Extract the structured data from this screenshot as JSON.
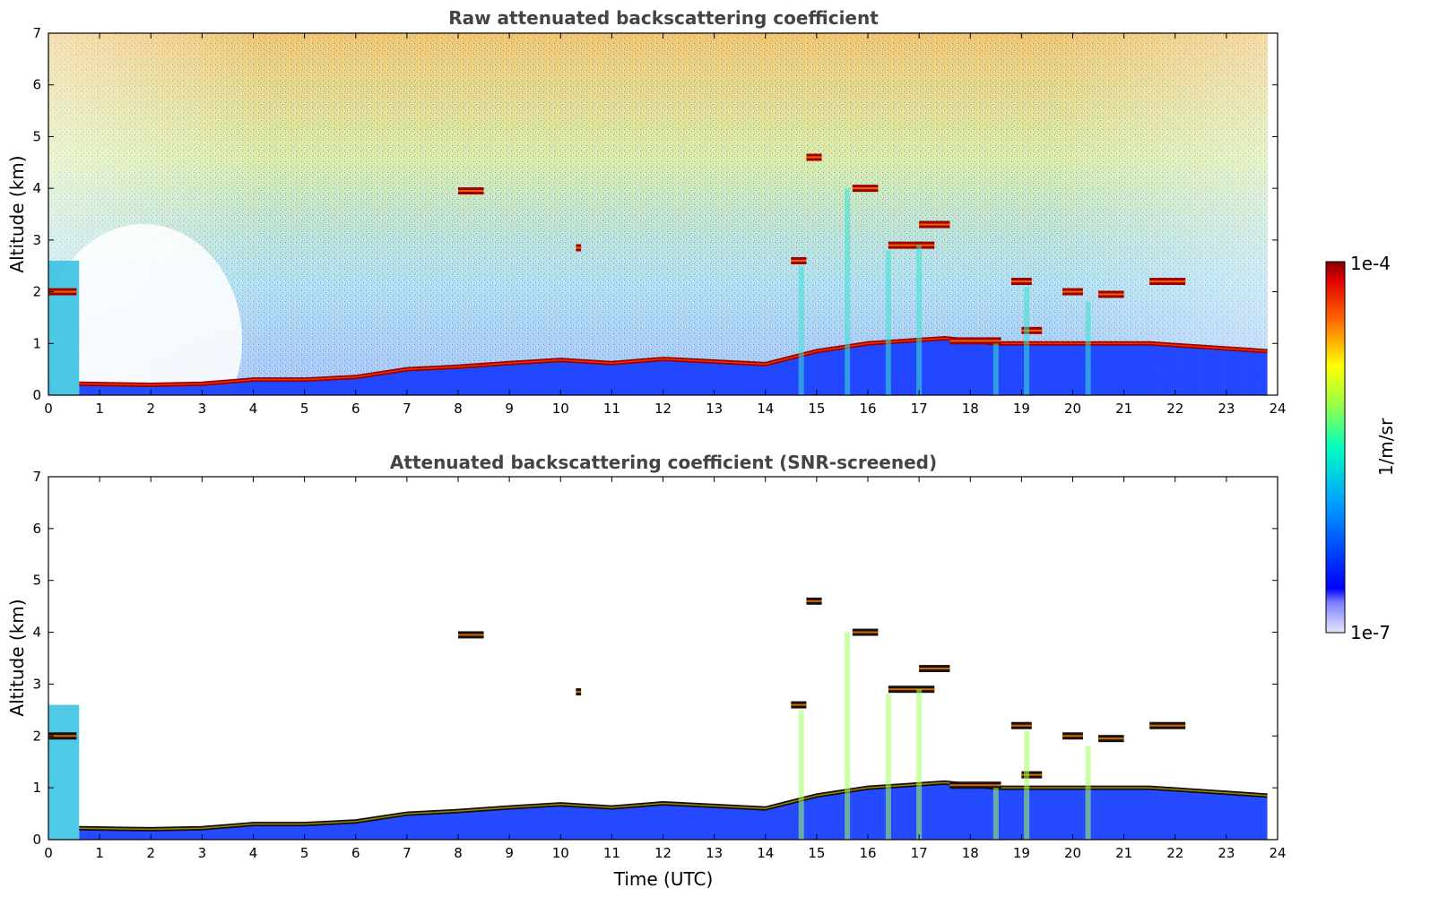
{
  "chart_data": [
    {
      "type": "heatmap",
      "title": "Raw attenuated backscattering coefficient",
      "xlabel": "",
      "ylabel": "Altitude (km)",
      "xlim": [
        0,
        24
      ],
      "ylim": [
        0,
        7
      ],
      "xticks": [
        "0",
        "1",
        "2",
        "3",
        "4",
        "5",
        "6",
        "7",
        "8",
        "9",
        "10",
        "11",
        "12",
        "13",
        "14",
        "15",
        "16",
        "17",
        "18",
        "19",
        "20",
        "21",
        "22",
        "23",
        "24"
      ],
      "yticks": [
        "0",
        "1",
        "2",
        "3",
        "4",
        "5",
        "6",
        "7"
      ],
      "boundary_layer_top_km": [
        [
          0.6,
          0.22
        ],
        [
          2.0,
          0.2
        ],
        [
          3.0,
          0.22
        ],
        [
          4.0,
          0.3
        ],
        [
          5.0,
          0.3
        ],
        [
          6.0,
          0.35
        ],
        [
          7.0,
          0.5
        ],
        [
          8.0,
          0.55
        ],
        [
          9.0,
          0.62
        ],
        [
          10.0,
          0.68
        ],
        [
          11.0,
          0.62
        ],
        [
          12.0,
          0.7
        ],
        [
          13.0,
          0.65
        ],
        [
          14.0,
          0.6
        ],
        [
          15.0,
          0.85
        ],
        [
          16.0,
          1.0
        ],
        [
          17.5,
          1.1
        ],
        [
          18.5,
          1.0
        ],
        [
          21.5,
          1.0
        ],
        [
          23.8,
          0.85
        ]
      ],
      "cloud_layers": [
        {
          "t0": 8.0,
          "t1": 8.5,
          "z": 3.95
        },
        {
          "t0": 10.3,
          "t1": 10.4,
          "z": 2.85
        },
        {
          "t0": 14.5,
          "t1": 14.8,
          "z": 2.6
        },
        {
          "t0": 14.8,
          "t1": 15.1,
          "z": 4.6
        },
        {
          "t0": 15.7,
          "t1": 16.2,
          "z": 4.0
        },
        {
          "t0": 16.4,
          "t1": 17.3,
          "z": 2.9
        },
        {
          "t0": 17.0,
          "t1": 17.6,
          "z": 3.3
        },
        {
          "t0": 18.8,
          "t1": 19.2,
          "z": 2.2
        },
        {
          "t0": 19.8,
          "t1": 20.2,
          "z": 2.0
        },
        {
          "t0": 20.5,
          "t1": 21.0,
          "z": 1.95
        },
        {
          "t0": 21.5,
          "t1": 22.2,
          "z": 2.2
        },
        {
          "t0": 17.6,
          "t1": 18.6,
          "z": 1.05
        },
        {
          "t0": 19.0,
          "t1": 19.4,
          "z": 1.25
        },
        {
          "t0": 0.0,
          "t1": 0.55,
          "z": 2.0
        }
      ]
    },
    {
      "type": "heatmap",
      "title": "Attenuated backscattering coefficient (SNR-screened)",
      "xlabel": "Time (UTC)",
      "ylabel": "Altitude (km)",
      "xlim": [
        0,
        24
      ],
      "ylim": [
        0,
        7
      ],
      "xticks": [
        "0",
        "1",
        "2",
        "3",
        "4",
        "5",
        "6",
        "7",
        "8",
        "9",
        "10",
        "11",
        "12",
        "13",
        "14",
        "15",
        "16",
        "17",
        "18",
        "19",
        "20",
        "21",
        "22",
        "23",
        "24"
      ],
      "yticks": [
        "0",
        "1",
        "2",
        "3",
        "4",
        "5",
        "6",
        "7"
      ]
    }
  ],
  "colorbar": {
    "label": "1/m/sr",
    "max_label": "1e-4",
    "min_label": "1e-7",
    "colormap": "jet"
  }
}
